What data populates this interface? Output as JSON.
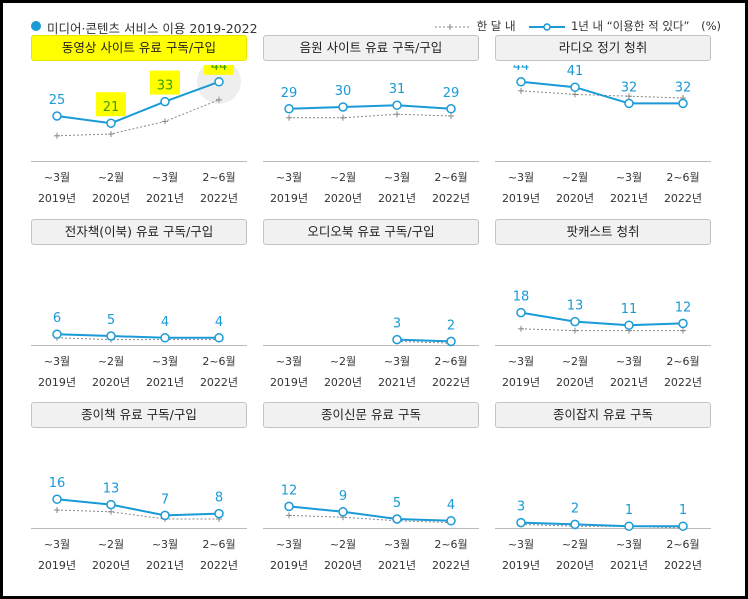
{
  "title": "미디어·콘텐츠 서비스 이용 2019-2022",
  "legend": {
    "month_label": "한 달 내",
    "year_label": "1년 내 “이용한 적 있다”",
    "unit": "(%)"
  },
  "colors": {
    "accent": "#1a9ad6",
    "monthly": "#888888",
    "label_highlight": "#ffff00",
    "highlight_text": "#3a9e00"
  },
  "chart_data": {
    "type": "line",
    "categories": [
      {
        "period": "~3월",
        "year": "2019년"
      },
      {
        "period": "~2월",
        "year": "2020년"
      },
      {
        "period": "~3월",
        "year": "2021년"
      },
      {
        "period": "2~6월",
        "year": "2022년"
      }
    ],
    "ylim": [
      0,
      50
    ],
    "panels": [
      {
        "title": "동영상 사이트 유료 구독/구입",
        "highlight": true,
        "values": [
          25,
          21,
          33,
          44
        ],
        "monthly": [
          14,
          15,
          22,
          34
        ]
      },
      {
        "title": "음원 사이트 유료 구독/구입",
        "values": [
          29,
          30,
          31,
          29
        ],
        "monthly": [
          24,
          24,
          26,
          25
        ]
      },
      {
        "title": "라디오 정기 청취",
        "values": [
          44,
          41,
          32,
          32
        ],
        "monthly": [
          39,
          37,
          36,
          35
        ]
      },
      {
        "title": "전자책(이북) 유료 구독/구입",
        "values": [
          6,
          5,
          4,
          4
        ],
        "monthly": [
          4,
          3,
          3,
          3
        ]
      },
      {
        "title": "오디오북 유료 구독/구입",
        "values": [
          null,
          null,
          3,
          2
        ],
        "monthly": [
          null,
          null,
          2,
          1
        ]
      },
      {
        "title": "팟캐스트 청취",
        "values": [
          18,
          13,
          11,
          12
        ],
        "monthly": [
          9,
          8,
          8,
          8
        ]
      },
      {
        "title": "종이책 유료 구독/구입",
        "values": [
          16,
          13,
          7,
          8
        ],
        "monthly": [
          10,
          9,
          5,
          5
        ]
      },
      {
        "title": "종이신문 유료 구독",
        "values": [
          12,
          9,
          5,
          4
        ],
        "monthly": [
          7,
          6,
          4,
          3
        ]
      },
      {
        "title": "종이잡지 유료 구독",
        "values": [
          3,
          2,
          1,
          1
        ],
        "monthly": [
          2,
          1,
          1,
          0
        ]
      }
    ]
  }
}
